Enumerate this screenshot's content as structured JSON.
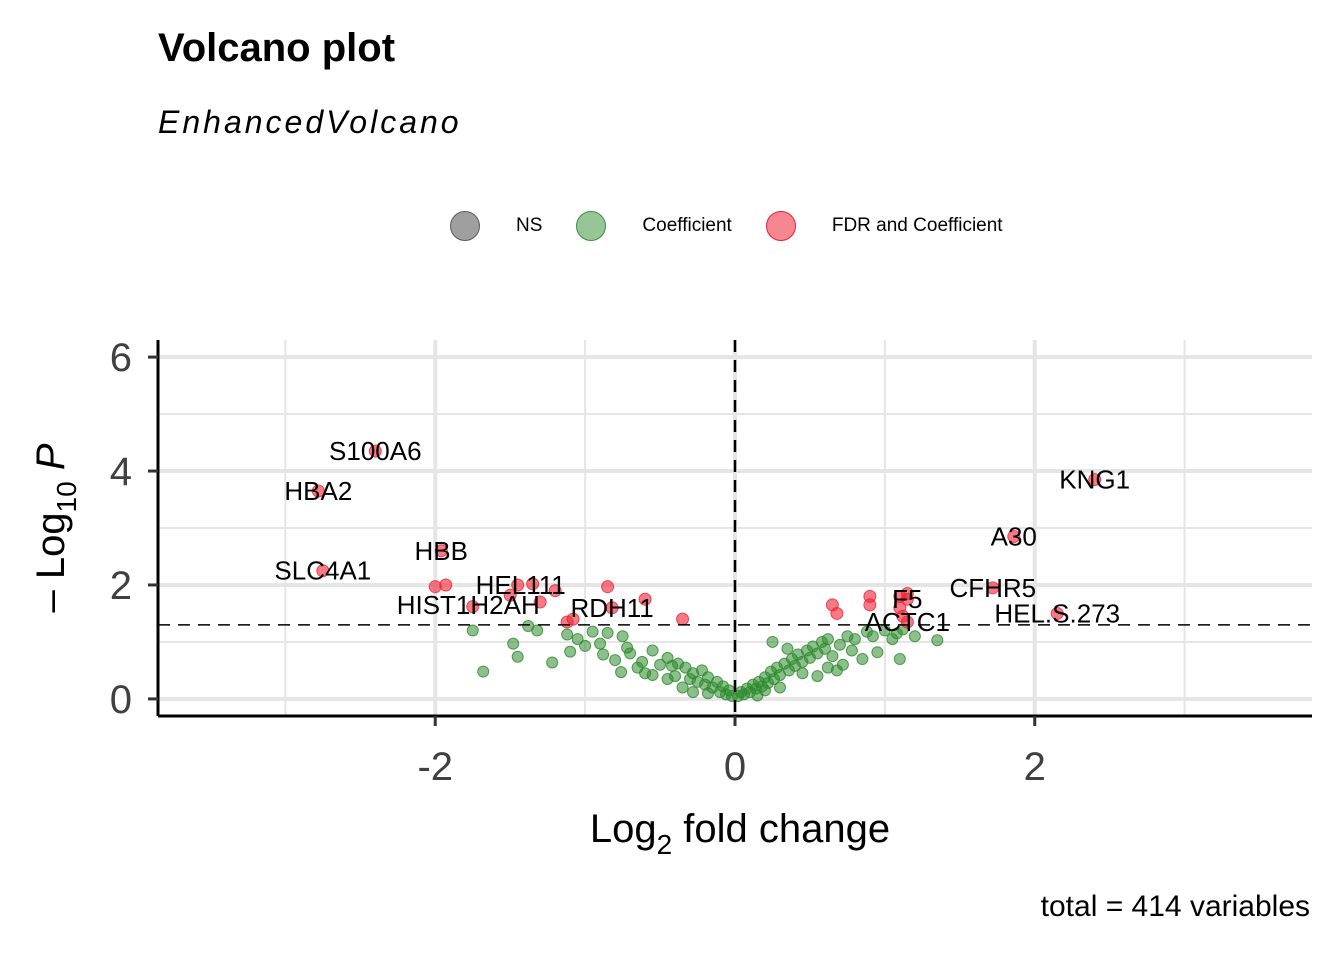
{
  "title": "Volcano plot",
  "subtitle": "EnhancedVolcano",
  "caption": "total = 414 variables",
  "legend": [
    {
      "label": "NS",
      "color": "#7f7f7f"
    },
    {
      "label": "Coefficient",
      "color": "#2e8b2e"
    },
    {
      "label": "FDR and Coefficient",
      "color": "#e8202f"
    }
  ],
  "colors": {
    "ns": "#7f7f7f",
    "coefficient": "#2e8b2e",
    "fdr": "#ef2233",
    "grid": "#e5e5e5"
  },
  "chart_data": {
    "type": "scatter",
    "xlabel": "Log2 fold change",
    "xlabel_base": "Log",
    "xlabel_sub": "2",
    "xlabel_rest": " fold change",
    "ylabel_prefix": "– Log",
    "ylabel_sub": "10",
    "ylabel_P": "P",
    "xlim": [
      -3.85,
      3.85
    ],
    "ylim": [
      -0.3,
      6.3
    ],
    "xticks": [
      -2,
      0,
      2
    ],
    "xtick_labels": [
      "-2",
      "0",
      "2"
    ],
    "yticks": [
      0,
      2,
      4,
      6
    ],
    "ytick_labels": [
      "0",
      "2",
      "4",
      "6"
    ],
    "cutoffs": {
      "x": 0,
      "y": 1.3
    },
    "labels": [
      {
        "text": "S100A6",
        "x": -2.4,
        "y": 4.35
      },
      {
        "text": "HBA2",
        "x": -2.78,
        "y": 3.65
      },
      {
        "text": "KNG1",
        "x": 2.4,
        "y": 3.85
      },
      {
        "text": "HBB",
        "x": -1.96,
        "y": 2.6
      },
      {
        "text": "A30",
        "x": 1.86,
        "y": 2.85
      },
      {
        "text": "SLC4A1",
        "x": -2.75,
        "y": 2.25
      },
      {
        "text": "HEL111",
        "x": -1.43,
        "y": 2.0
      },
      {
        "text": "CFHR5",
        "x": 1.72,
        "y": 1.95
      },
      {
        "text": "HIST1H2AH",
        "x": -1.78,
        "y": 1.65
      },
      {
        "text": "RDH11",
        "x": -0.82,
        "y": 1.6
      },
      {
        "text": "F5",
        "x": 1.15,
        "y": 1.75
      },
      {
        "text": "HEL.S.273",
        "x": 2.15,
        "y": 1.5
      },
      {
        "text": "ACTC1",
        "x": 1.15,
        "y": 1.35
      }
    ],
    "fdr_points": [
      {
        "x": -2.4,
        "y": 4.35
      },
      {
        "x": -2.78,
        "y": 3.65
      },
      {
        "x": 2.4,
        "y": 3.85
      },
      {
        "x": -1.96,
        "y": 2.6
      },
      {
        "x": 1.86,
        "y": 2.85
      },
      {
        "x": -2.75,
        "y": 2.25
      },
      {
        "x": -2.0,
        "y": 1.97
      },
      {
        "x": -1.93,
        "y": 2.0
      },
      {
        "x": -1.45,
        "y": 2.0
      },
      {
        "x": -1.35,
        "y": 2.02
      },
      {
        "x": -1.2,
        "y": 1.9
      },
      {
        "x": -1.5,
        "y": 1.82
      },
      {
        "x": -0.85,
        "y": 1.97
      },
      {
        "x": -1.75,
        "y": 1.62
      },
      {
        "x": -1.3,
        "y": 1.7
      },
      {
        "x": -0.6,
        "y": 1.75
      },
      {
        "x": -0.82,
        "y": 1.6
      },
      {
        "x": -1.12,
        "y": 1.35
      },
      {
        "x": -1.08,
        "y": 1.4
      },
      {
        "x": -0.35,
        "y": 1.4
      },
      {
        "x": 0.65,
        "y": 1.65
      },
      {
        "x": 0.68,
        "y": 1.5
      },
      {
        "x": 0.9,
        "y": 1.8
      },
      {
        "x": 0.9,
        "y": 1.65
      },
      {
        "x": 1.1,
        "y": 1.8
      },
      {
        "x": 1.15,
        "y": 1.85
      },
      {
        "x": 1.1,
        "y": 1.6
      },
      {
        "x": 1.15,
        "y": 1.75
      },
      {
        "x": 1.72,
        "y": 1.95
      },
      {
        "x": 2.15,
        "y": 1.5
      },
      {
        "x": 1.15,
        "y": 1.35
      },
      {
        "x": 1.12,
        "y": 1.45
      }
    ],
    "coef_points": [
      {
        "x": -1.75,
        "y": 1.2
      },
      {
        "x": -1.68,
        "y": 0.48
      },
      {
        "x": -1.48,
        "y": 0.97
      },
      {
        "x": -1.45,
        "y": 0.74
      },
      {
        "x": -1.38,
        "y": 1.28
      },
      {
        "x": -1.32,
        "y": 1.2
      },
      {
        "x": -1.22,
        "y": 0.64
      },
      {
        "x": -1.12,
        "y": 1.13
      },
      {
        "x": -1.1,
        "y": 0.83
      },
      {
        "x": -0.95,
        "y": 1.18
      },
      {
        "x": -0.9,
        "y": 0.97
      },
      {
        "x": -0.88,
        "y": 0.78
      },
      {
        "x": -0.85,
        "y": 1.16
      },
      {
        "x": -0.8,
        "y": 0.68
      },
      {
        "x": -0.75,
        "y": 1.1
      },
      {
        "x": -0.76,
        "y": 0.47
      },
      {
        "x": -0.72,
        "y": 0.9
      },
      {
        "x": -0.7,
        "y": 0.8
      },
      {
        "x": -0.62,
        "y": 0.65
      },
      {
        "x": -0.6,
        "y": 0.45
      },
      {
        "x": -0.55,
        "y": 0.85
      },
      {
        "x": -0.5,
        "y": 0.6
      },
      {
        "x": -0.45,
        "y": 0.72
      },
      {
        "x": -0.4,
        "y": 0.4
      },
      {
        "x": -0.38,
        "y": 0.62
      },
      {
        "x": -0.33,
        "y": 0.55
      },
      {
        "x": -0.3,
        "y": 0.35
      },
      {
        "x": -0.28,
        "y": 0.45
      },
      {
        "x": -0.25,
        "y": 0.3
      },
      {
        "x": -0.22,
        "y": 0.5
      },
      {
        "x": -0.2,
        "y": 0.25
      },
      {
        "x": -0.18,
        "y": 0.38
      },
      {
        "x": -0.15,
        "y": 0.2
      },
      {
        "x": -0.12,
        "y": 0.3
      },
      {
        "x": -0.1,
        "y": 0.12
      },
      {
        "x": -0.08,
        "y": 0.22
      },
      {
        "x": -0.06,
        "y": 0.08
      },
      {
        "x": -0.04,
        "y": 0.15
      },
      {
        "x": -0.02,
        "y": 0.05
      },
      {
        "x": -0.35,
        "y": 0.2
      },
      {
        "x": -0.45,
        "y": 0.35
      },
      {
        "x": -0.55,
        "y": 0.42
      },
      {
        "x": -0.65,
        "y": 0.55
      },
      {
        "x": -0.28,
        "y": 0.12
      },
      {
        "x": -0.18,
        "y": 0.1
      },
      {
        "x": -1.0,
        "y": 0.93
      },
      {
        "x": -1.05,
        "y": 1.05
      },
      {
        "x": -0.42,
        "y": 0.58
      },
      {
        "x": 0.02,
        "y": 0.05
      },
      {
        "x": 0.04,
        "y": 0.12
      },
      {
        "x": 0.06,
        "y": 0.08
      },
      {
        "x": 0.08,
        "y": 0.18
      },
      {
        "x": 0.1,
        "y": 0.12
      },
      {
        "x": 0.12,
        "y": 0.25
      },
      {
        "x": 0.14,
        "y": 0.18
      },
      {
        "x": 0.16,
        "y": 0.3
      },
      {
        "x": 0.18,
        "y": 0.22
      },
      {
        "x": 0.2,
        "y": 0.38
      },
      {
        "x": 0.22,
        "y": 0.28
      },
      {
        "x": 0.24,
        "y": 0.48
      },
      {
        "x": 0.26,
        "y": 0.35
      },
      {
        "x": 0.28,
        "y": 0.55
      },
      {
        "x": 0.3,
        "y": 0.42
      },
      {
        "x": 0.33,
        "y": 0.62
      },
      {
        "x": 0.36,
        "y": 0.5
      },
      {
        "x": 0.38,
        "y": 0.7
      },
      {
        "x": 0.4,
        "y": 0.58
      },
      {
        "x": 0.42,
        "y": 0.78
      },
      {
        "x": 0.45,
        "y": 0.65
      },
      {
        "x": 0.48,
        "y": 0.85
      },
      {
        "x": 0.5,
        "y": 0.72
      },
      {
        "x": 0.52,
        "y": 0.92
      },
      {
        "x": 0.55,
        "y": 0.8
      },
      {
        "x": 0.58,
        "y": 1.0
      },
      {
        "x": 0.6,
        "y": 0.88
      },
      {
        "x": 0.62,
        "y": 0.55
      },
      {
        "x": 0.65,
        "y": 0.75
      },
      {
        "x": 0.7,
        "y": 0.95
      },
      {
        "x": 0.72,
        "y": 0.6
      },
      {
        "x": 0.75,
        "y": 1.1
      },
      {
        "x": 0.78,
        "y": 0.85
      },
      {
        "x": 0.8,
        "y": 1.05
      },
      {
        "x": 0.85,
        "y": 0.7
      },
      {
        "x": 0.88,
        "y": 1.18
      },
      {
        "x": 0.92,
        "y": 1.1
      },
      {
        "x": 0.95,
        "y": 0.82
      },
      {
        "x": 1.0,
        "y": 1.2
      },
      {
        "x": 1.05,
        "y": 1.05
      },
      {
        "x": 1.08,
        "y": 1.15
      },
      {
        "x": 1.12,
        "y": 1.22
      },
      {
        "x": 1.1,
        "y": 0.7
      },
      {
        "x": 1.2,
        "y": 1.1
      },
      {
        "x": 1.35,
        "y": 1.03
      },
      {
        "x": 0.25,
        "y": 1.0
      },
      {
        "x": 0.35,
        "y": 0.88
      },
      {
        "x": 0.45,
        "y": 0.45
      },
      {
        "x": 0.55,
        "y": 0.4
      },
      {
        "x": 0.3,
        "y": 0.2
      },
      {
        "x": 0.2,
        "y": 0.15
      },
      {
        "x": 0.62,
        "y": 1.05
      },
      {
        "x": 0.68,
        "y": 0.5
      },
      {
        "x": 0.15,
        "y": 0.06
      }
    ]
  }
}
